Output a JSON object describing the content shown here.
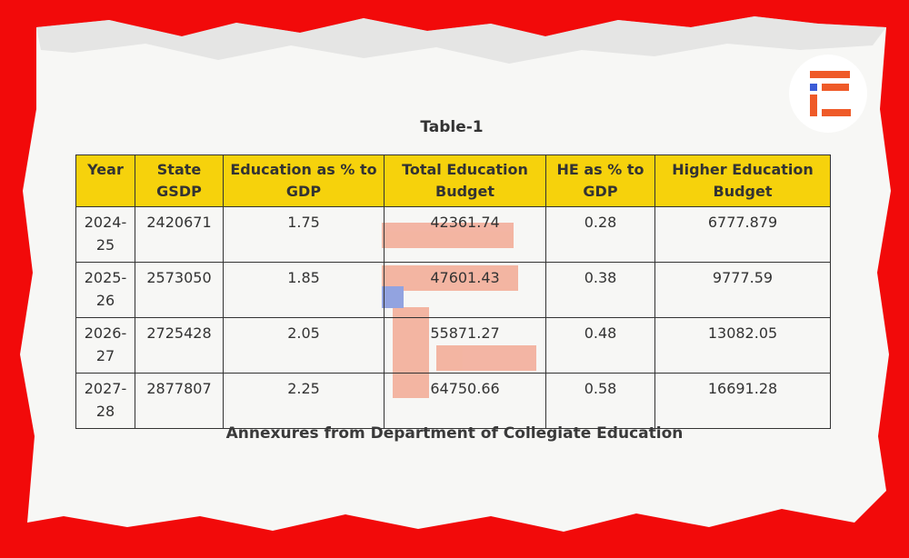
{
  "title": "Table-1",
  "table": {
    "header": [
      "Year",
      "State GSDP",
      "Education as % to GDP",
      "Total Education Budget",
      "HE as % to GDP",
      "Higher Education Budget"
    ],
    "rows": [
      [
        "2024-25",
        "2420671",
        "1.75",
        "42361.74",
        "0.28",
        "6777.879"
      ],
      [
        "2025-26",
        "2573050",
        "1.85",
        "47601.43",
        "0.38",
        "9777.59"
      ],
      [
        "2026-27",
        "2725428",
        "2.05",
        "55871.27",
        "0.48",
        "13082.05"
      ],
      [
        "2027-28",
        "2877807",
        "2.25",
        "64750.66",
        "0.58",
        "16691.28"
      ]
    ]
  },
  "caption": "Annexures from Department of Collegiate Education"
}
